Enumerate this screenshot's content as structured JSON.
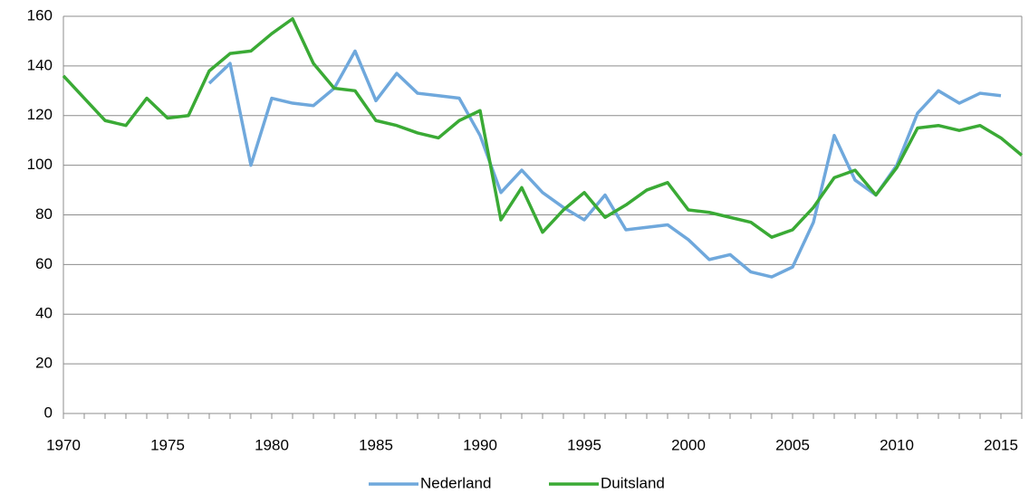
{
  "chart_data": {
    "type": "line",
    "x": [
      1970,
      1971,
      1972,
      1973,
      1974,
      1975,
      1976,
      1977,
      1978,
      1979,
      1980,
      1981,
      1982,
      1983,
      1984,
      1985,
      1986,
      1987,
      1988,
      1989,
      1990,
      1991,
      1992,
      1993,
      1994,
      1995,
      1996,
      1997,
      1998,
      1999,
      2000,
      2001,
      2002,
      2003,
      2004,
      2005,
      2006,
      2007,
      2008,
      2009,
      2010,
      2011,
      2012,
      2013,
      2014,
      2015,
      2016
    ],
    "series": [
      {
        "name": "Nederland",
        "color": "#6fa8dc",
        "values": [
          null,
          null,
          null,
          null,
          null,
          null,
          null,
          133,
          141,
          100,
          127,
          125,
          124,
          131,
          146,
          126,
          137,
          129,
          128,
          127,
          112,
          89,
          98,
          89,
          83,
          78,
          88,
          74,
          75,
          76,
          70,
          62,
          64,
          57,
          55,
          59,
          77,
          112,
          94,
          88,
          100,
          121,
          130,
          125,
          129,
          128,
          null
        ]
      },
      {
        "name": "Duitsland",
        "color": "#3aaa35",
        "values": [
          136,
          127,
          118,
          116,
          127,
          119,
          120,
          138,
          145,
          146,
          153,
          159,
          141,
          131,
          130,
          118,
          116,
          113,
          111,
          118,
          122,
          78,
          91,
          73,
          82,
          89,
          79,
          84,
          90,
          93,
          82,
          81,
          79,
          77,
          71,
          74,
          83,
          95,
          98,
          88,
          99,
          115,
          116,
          114,
          116,
          111,
          104
        ]
      }
    ],
    "xlim": [
      1970,
      2016
    ],
    "xticks": [
      1970,
      1975,
      1980,
      1985,
      1990,
      1995,
      2000,
      2005,
      2010,
      2015
    ],
    "ylim": [
      0,
      160
    ],
    "yticks": [
      0,
      20,
      40,
      60,
      80,
      100,
      120,
      140,
      160
    ],
    "grid": true,
    "legend": "bottom"
  }
}
